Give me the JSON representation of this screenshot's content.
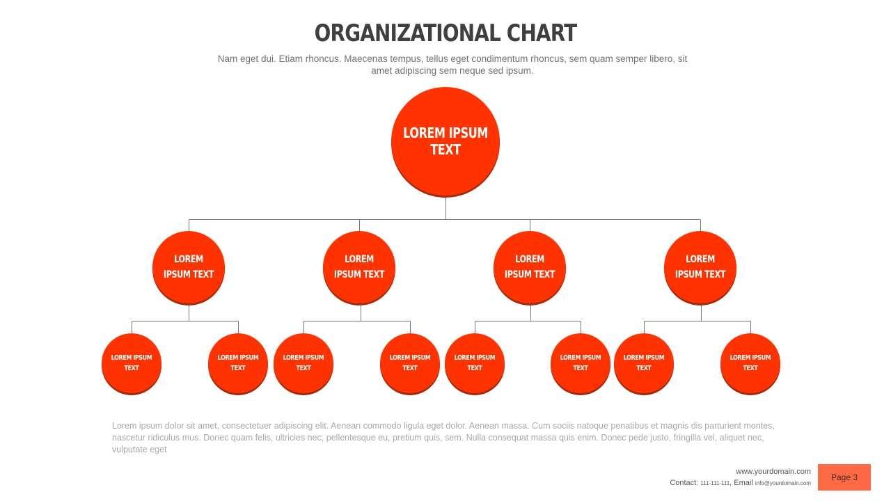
{
  "header": {
    "title": "ORGANIZATIONAL CHART",
    "subtitle": "Nam eget dui. Etiam rhoncus. Maecenas tempus, tellus eget condimentum  rhoncus, sem quam semper libero, sit amet adipiscing sem neque sed ipsum."
  },
  "chart": {
    "root": "LOREM IPSUM TEXT",
    "level2": [
      "LOREM IPSUM TEXT",
      "LOREM IPSUM TEXT",
      "LOREM IPSUM TEXT",
      "LOREM IPSUM TEXT"
    ],
    "level3": [
      "LOREM IPSUM TEXT",
      "LOREM IPSUM TEXT",
      "LOREM IPSUM TEXT",
      "LOREM IPSUM TEXT",
      "LOREM IPSUM TEXT",
      "LOREM IPSUM TEXT",
      "LOREM IPSUM TEXT",
      "LOREM IPSUM TEXT"
    ],
    "node_color": "#ff3300"
  },
  "body_text": "Lorem ipsum  dolor sit amet, consectetuer adipiscing elit. Aenean commodo ligula eget dolor.  Aenean massa.  Cum sociis  natoque penatibus  et magnis dis  parturient montes,  nascetur ridiculus  mus.  Donec quam felis,  ultricies nec,  pellentesque  eu,  pretium quis,  sem.  Nulla consequat  massa quis  enim.  Donec pede justo,  fringilla vel, aliquet nec,  vulputate eget",
  "footer": {
    "website": "www.yourdomain.com",
    "contact_label": "Contact: ",
    "phone": "111-111-111",
    "email_label": ", Email ",
    "email": "info@yourdomain.com",
    "page": "Page 3",
    "page_color": "#ff6a45"
  }
}
